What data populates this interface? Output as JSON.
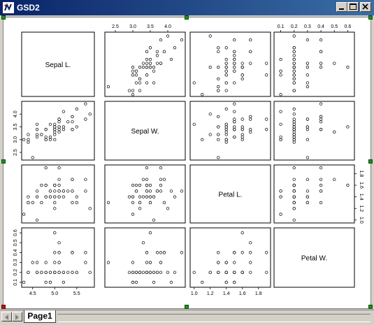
{
  "window": {
    "title": "GSD2",
    "controls": [
      "minimize-icon",
      "maximize-icon",
      "close-icon"
    ]
  },
  "colors": {
    "title_start": "#0a246a",
    "title_end": "#3a6ea5",
    "panel_border": "#000000",
    "point": "#000000"
  },
  "tabs": [
    {
      "label": "Page1",
      "active": true
    }
  ],
  "chart_data": {
    "type": "scatter",
    "subtype": "scatterplot-matrix",
    "variables": [
      "Sepal L.",
      "Sepal W.",
      "Petal L.",
      "Petal W."
    ],
    "axis_ranges": {
      "Sepal L.": [
        4.25,
        5.9
      ],
      "Sepal W.": [
        2.2,
        4.5
      ],
      "Petal L.": [
        0.95,
        1.95
      ],
      "Petal W.": [
        0.05,
        0.65
      ]
    },
    "ticks": {
      "Sepal L.": [
        "4.5",
        "5.0",
        "5.5"
      ],
      "Sepal W.": [
        "2.5",
        "3.0",
        "3.5",
        "4.0"
      ],
      "Petal L.": [
        "1.0",
        "1.2",
        "1.4",
        "1.6",
        "1.8"
      ],
      "Petal W.": [
        "0.1",
        "0.2",
        "0.3",
        "0.4",
        "0.5",
        "0.6"
      ]
    },
    "tick_placement": {
      "Sepal L.": "bottom",
      "Sepal W.": "top,left",
      "Petal L.": "bottom,right",
      "Petal W.": "top,left"
    },
    "grid": false,
    "points": [
      [
        5.1,
        3.5,
        1.4,
        0.2
      ],
      [
        4.9,
        3.0,
        1.4,
        0.2
      ],
      [
        4.7,
        3.2,
        1.3,
        0.2
      ],
      [
        4.6,
        3.1,
        1.5,
        0.2
      ],
      [
        5.0,
        3.6,
        1.4,
        0.2
      ],
      [
        5.4,
        3.9,
        1.7,
        0.4
      ],
      [
        4.6,
        3.4,
        1.4,
        0.3
      ],
      [
        5.0,
        3.4,
        1.5,
        0.2
      ],
      [
        4.4,
        2.9,
        1.4,
        0.2
      ],
      [
        4.9,
        3.1,
        1.5,
        0.1
      ],
      [
        5.4,
        3.7,
        1.5,
        0.2
      ],
      [
        4.8,
        3.4,
        1.6,
        0.2
      ],
      [
        4.8,
        3.0,
        1.4,
        0.1
      ],
      [
        4.3,
        3.0,
        1.1,
        0.1
      ],
      [
        5.8,
        4.0,
        1.2,
        0.2
      ],
      [
        5.7,
        4.4,
        1.5,
        0.4
      ],
      [
        5.4,
        3.9,
        1.3,
        0.4
      ],
      [
        5.1,
        3.5,
        1.4,
        0.3
      ],
      [
        5.7,
        3.8,
        1.7,
        0.3
      ],
      [
        5.1,
        3.8,
        1.5,
        0.3
      ],
      [
        5.4,
        3.4,
        1.7,
        0.2
      ],
      [
        5.1,
        3.7,
        1.5,
        0.4
      ],
      [
        4.6,
        3.6,
        1.0,
        0.2
      ],
      [
        5.1,
        3.3,
        1.7,
        0.5
      ],
      [
        4.8,
        3.4,
        1.9,
        0.2
      ],
      [
        5.0,
        3.0,
        1.6,
        0.2
      ],
      [
        5.0,
        3.4,
        1.6,
        0.4
      ],
      [
        5.2,
        3.5,
        1.5,
        0.2
      ],
      [
        5.2,
        3.4,
        1.4,
        0.2
      ],
      [
        4.7,
        3.2,
        1.6,
        0.2
      ],
      [
        4.8,
        3.1,
        1.6,
        0.2
      ],
      [
        5.4,
        3.4,
        1.5,
        0.4
      ],
      [
        5.2,
        4.1,
        1.5,
        0.1
      ],
      [
        5.5,
        4.2,
        1.4,
        0.2
      ],
      [
        4.9,
        3.1,
        1.5,
        0.2
      ],
      [
        5.0,
        3.2,
        1.2,
        0.2
      ],
      [
        5.5,
        3.5,
        1.3,
        0.2
      ],
      [
        4.9,
        3.6,
        1.4,
        0.1
      ],
      [
        4.4,
        3.0,
        1.3,
        0.2
      ],
      [
        5.1,
        3.4,
        1.5,
        0.2
      ],
      [
        5.0,
        3.5,
        1.3,
        0.3
      ],
      [
        4.5,
        2.3,
        1.3,
        0.3
      ],
      [
        4.4,
        3.2,
        1.3,
        0.2
      ],
      [
        5.0,
        3.5,
        1.6,
        0.6
      ],
      [
        5.1,
        3.8,
        1.9,
        0.4
      ],
      [
        4.8,
        3.0,
        1.4,
        0.3
      ],
      [
        5.1,
        3.8,
        1.6,
        0.2
      ],
      [
        4.6,
        3.2,
        1.4,
        0.2
      ],
      [
        5.3,
        3.7,
        1.5,
        0.2
      ],
      [
        5.0,
        3.3,
        1.4,
        0.2
      ]
    ]
  }
}
